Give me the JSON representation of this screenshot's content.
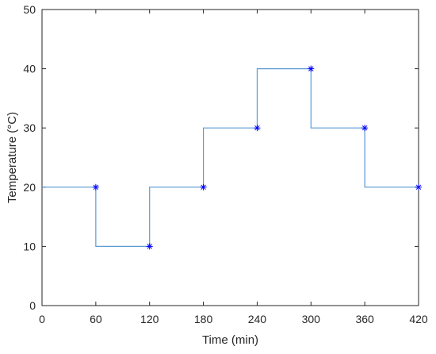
{
  "chart_data": {
    "type": "line",
    "step": true,
    "title": "",
    "xlabel": "Time (min)",
    "ylabel": "Temperature (°C)",
    "xlim": [
      0,
      420
    ],
    "ylim": [
      0,
      50
    ],
    "xticks": [
      "0",
      "60",
      "120",
      "180",
      "240",
      "300",
      "360",
      "420"
    ],
    "yticks": [
      "0",
      "10",
      "20",
      "30",
      "40",
      "50"
    ],
    "grid": false,
    "colors": {
      "line": "#5a9bd5",
      "marker": "#0000ff",
      "axes": "#262626"
    },
    "series": [
      {
        "name": "",
        "marker": "asterisk",
        "points": [
          {
            "x": 60,
            "y": 20
          },
          {
            "x": 120,
            "y": 10
          },
          {
            "x": 180,
            "y": 20
          },
          {
            "x": 240,
            "y": 30
          },
          {
            "x": 300,
            "y": 40
          },
          {
            "x": 360,
            "y": 30
          },
          {
            "x": 420,
            "y": 20
          }
        ],
        "step_line": [
          {
            "x": 0,
            "y": 20
          },
          {
            "x": 60,
            "y": 20
          },
          {
            "x": 60,
            "y": 10
          },
          {
            "x": 120,
            "y": 10
          },
          {
            "x": 120,
            "y": 20
          },
          {
            "x": 180,
            "y": 20
          },
          {
            "x": 180,
            "y": 30
          },
          {
            "x": 240,
            "y": 30
          },
          {
            "x": 240,
            "y": 40
          },
          {
            "x": 300,
            "y": 40
          },
          {
            "x": 300,
            "y": 30
          },
          {
            "x": 360,
            "y": 30
          },
          {
            "x": 360,
            "y": 20
          },
          {
            "x": 420,
            "y": 20
          }
        ]
      }
    ]
  }
}
